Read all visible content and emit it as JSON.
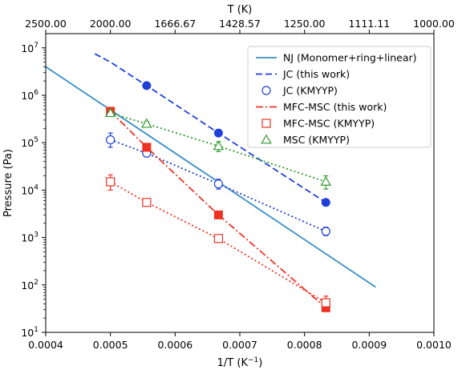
{
  "chart_data": {
    "type": "scatter",
    "xlabel": "1/T (K",
    "xlabel_sup": "−1",
    "xlabel_end": ")",
    "ylabel": "Pressure (Pa)",
    "top_xlabel": "T (K)",
    "xlim": [
      0.0004,
      0.001
    ],
    "ylim_log10": [
      1,
      7.3
    ],
    "y_scale": "log",
    "x_ticks": [
      0.0004,
      0.0005,
      0.0006,
      0.0007,
      0.0008,
      0.0009,
      0.001
    ],
    "x_tick_labels": [
      "0.0004",
      "0.0005",
      "0.0006",
      "0.0007",
      "0.0008",
      "0.0009",
      "0.0010"
    ],
    "y_ticks_exp": [
      1,
      2,
      3,
      4,
      5,
      6,
      7
    ],
    "y_tick_base": "10",
    "y_tick_labels_exp": [
      "1",
      "2",
      "3",
      "4",
      "5",
      "6",
      "7"
    ],
    "top_x_ticks": [
      2500,
      2000,
      1666.67,
      1428.57,
      1250,
      1111.11,
      1000
    ],
    "top_x_tick_labels": [
      "2500.00",
      "2000.00",
      "1666.67",
      "1428.57",
      "1250.00",
      "1111.11",
      "1000.00"
    ],
    "legend_position": "top-right",
    "series": [
      {
        "name": "NJ (Monomer+ring+linear)",
        "kind": "line",
        "color": "#3a8fc7",
        "dash": "",
        "marker": "none",
        "x": [
          0.0004,
          0.00091
        ],
        "y": [
          4000000,
          90
        ]
      },
      {
        "name": "JC (this work)",
        "kind": "line",
        "color": "#1f3fd9",
        "dash": "8,4",
        "marker": "circle-filled",
        "x": [
          0.000476,
          0.0005,
          0.000556,
          0.000667,
          0.000833
        ],
        "y": [
          7500000,
          5000000,
          1600000,
          160000,
          5500
        ],
        "marker_points": [
          0,
          0,
          1,
          1,
          1
        ]
      },
      {
        "name": "JC (KMYYP)",
        "kind": "dotted",
        "color": "#1f3fd9",
        "dash": "2,3",
        "marker": "circle-open",
        "x": [
          0.0005,
          0.000556,
          0.000667,
          0.000833
        ],
        "y": [
          115000,
          60000,
          13500,
          1350
        ],
        "err_low": [
          80000,
          50000,
          10500,
          1100
        ],
        "err_high": [
          160000,
          72000,
          17000,
          1650
        ]
      },
      {
        "name": "MFC-MSC (this work)",
        "kind": "line",
        "color": "#ee3322",
        "dash": "9,3,2,3",
        "marker": "square-filled",
        "x": [
          0.0005,
          0.000556,
          0.000667,
          0.000833
        ],
        "y": [
          460000,
          80000,
          3000,
          33
        ]
      },
      {
        "name": "MFC-MSC (KMYYP)",
        "kind": "dotted",
        "color": "#ee3322",
        "dash": "2,3",
        "marker": "square-open",
        "x": [
          0.0005,
          0.000556,
          0.000667,
          0.000833
        ],
        "y": [
          15000,
          5500,
          950,
          42
        ],
        "err_low": [
          10000,
          4800,
          850,
          28
        ],
        "err_high": [
          21000,
          6300,
          1050,
          58
        ]
      },
      {
        "name": "MSC (KMYYP)",
        "kind": "dotted",
        "color": "#2e9a2e",
        "dash": "2,3",
        "marker": "triangle-open",
        "x": [
          0.0005,
          0.000556,
          0.000667,
          0.000833
        ],
        "y": [
          420000,
          250000,
          85000,
          15000
        ],
        "err_low": [
          380000,
          220000,
          65000,
          10500
        ],
        "err_high": [
          460000,
          280000,
          105000,
          20000
        ]
      }
    ]
  }
}
